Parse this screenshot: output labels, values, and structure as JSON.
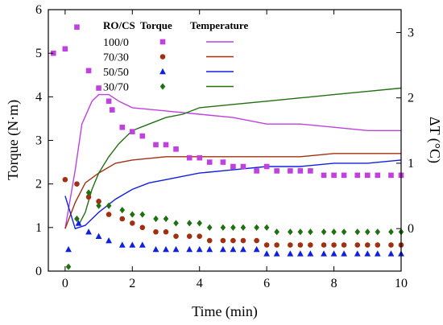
{
  "chart_data": {
    "type": "scatter",
    "xlabel": "Time (min)",
    "ylabel_left": "Torque (N·m)",
    "ylabel_right": "ΔT (°C)",
    "xlim": [
      -0.5,
      10
    ],
    "ylim_left": [
      0,
      6
    ],
    "ylim_right": [
      -0.65,
      3.35
    ],
    "x_ticks": [
      0,
      2,
      4,
      6,
      8,
      10
    ],
    "y_left_ticks": [
      0,
      1,
      2,
      3,
      4,
      5,
      6
    ],
    "y_right_ticks": [
      0,
      1,
      2,
      3
    ],
    "grid": false,
    "legend": {
      "placement": "top-center",
      "header_group": "RO/CS",
      "header_torque": "Torque",
      "header_temp": "Temperature"
    },
    "series": [
      {
        "name": "100/0",
        "color": "#c040e0",
        "marker": "square",
        "torque": [
          [
            -0.35,
            5.0
          ],
          [
            0.0,
            5.1
          ],
          [
            0.35,
            5.6
          ],
          [
            0.7,
            4.6
          ],
          [
            1.0,
            4.2
          ],
          [
            1.3,
            3.9
          ],
          [
            1.4,
            3.7
          ],
          [
            1.7,
            3.3
          ],
          [
            2.0,
            3.2
          ],
          [
            2.3,
            3.1
          ],
          [
            2.7,
            2.9
          ],
          [
            3.0,
            2.9
          ],
          [
            3.3,
            2.8
          ],
          [
            3.7,
            2.6
          ],
          [
            4.0,
            2.6
          ],
          [
            4.3,
            2.5
          ],
          [
            4.7,
            2.5
          ],
          [
            5.0,
            2.4
          ],
          [
            5.3,
            2.4
          ],
          [
            5.7,
            2.3
          ],
          [
            6.0,
            2.4
          ],
          [
            6.3,
            2.3
          ],
          [
            6.7,
            2.3
          ],
          [
            7.0,
            2.3
          ],
          [
            7.3,
            2.3
          ],
          [
            7.7,
            2.2
          ],
          [
            8.0,
            2.2
          ],
          [
            8.3,
            2.2
          ],
          [
            8.7,
            2.2
          ],
          [
            9.0,
            2.2
          ],
          [
            9.3,
            2.2
          ],
          [
            9.7,
            2.2
          ],
          [
            10.0,
            2.2
          ]
        ],
        "temperature": [
          [
            0.0,
            0.0
          ],
          [
            0.3,
            0.9
          ],
          [
            0.5,
            1.6
          ],
          [
            0.8,
            1.95
          ],
          [
            1.0,
            2.05
          ],
          [
            1.3,
            2.05
          ],
          [
            1.6,
            1.95
          ],
          [
            2.0,
            1.85
          ],
          [
            3.0,
            1.8
          ],
          [
            4.0,
            1.75
          ],
          [
            5.0,
            1.7
          ],
          [
            6.0,
            1.6
          ],
          [
            7.0,
            1.6
          ],
          [
            8.0,
            1.55
          ],
          [
            9.0,
            1.5
          ],
          [
            10.0,
            1.5
          ]
        ]
      },
      {
        "name": "70/30",
        "color": "#a03010",
        "marker": "circle",
        "torque": [
          [
            0.0,
            2.1
          ],
          [
            0.35,
            2.0
          ],
          [
            0.7,
            1.7
          ],
          [
            1.0,
            1.6
          ],
          [
            1.3,
            1.3
          ],
          [
            1.7,
            1.2
          ],
          [
            2.0,
            1.1
          ],
          [
            2.3,
            1.0
          ],
          [
            2.7,
            0.9
          ],
          [
            3.0,
            0.9
          ],
          [
            3.3,
            0.8
          ],
          [
            3.7,
            0.8
          ],
          [
            4.0,
            0.8
          ],
          [
            4.3,
            0.7
          ],
          [
            4.7,
            0.7
          ],
          [
            5.0,
            0.7
          ],
          [
            5.3,
            0.7
          ],
          [
            5.7,
            0.7
          ],
          [
            6.0,
            0.6
          ],
          [
            6.3,
            0.6
          ],
          [
            6.7,
            0.6
          ],
          [
            7.0,
            0.6
          ],
          [
            7.3,
            0.6
          ],
          [
            7.7,
            0.6
          ],
          [
            8.0,
            0.6
          ],
          [
            8.3,
            0.6
          ],
          [
            8.7,
            0.6
          ],
          [
            9.0,
            0.6
          ],
          [
            9.3,
            0.6
          ],
          [
            9.7,
            0.6
          ],
          [
            10.0,
            0.6
          ]
        ],
        "temperature": [
          [
            0.0,
            0.0
          ],
          [
            0.3,
            0.4
          ],
          [
            0.6,
            0.7
          ],
          [
            1.0,
            0.85
          ],
          [
            1.5,
            1.0
          ],
          [
            2.0,
            1.05
          ],
          [
            3.0,
            1.1
          ],
          [
            4.0,
            1.1
          ],
          [
            5.0,
            1.1
          ],
          [
            6.0,
            1.1
          ],
          [
            7.0,
            1.1
          ],
          [
            8.0,
            1.15
          ],
          [
            9.0,
            1.15
          ],
          [
            10.0,
            1.15
          ]
        ]
      },
      {
        "name": "50/50",
        "color": "#1020e0",
        "marker": "triangle",
        "torque": [
          [
            0.1,
            0.5
          ],
          [
            0.4,
            1.1
          ],
          [
            0.7,
            0.9
          ],
          [
            1.0,
            0.8
          ],
          [
            1.3,
            0.7
          ],
          [
            1.7,
            0.6
          ],
          [
            2.0,
            0.6
          ],
          [
            2.3,
            0.6
          ],
          [
            2.7,
            0.5
          ],
          [
            3.0,
            0.5
          ],
          [
            3.3,
            0.5
          ],
          [
            3.7,
            0.5
          ],
          [
            4.0,
            0.5
          ],
          [
            4.3,
            0.5
          ],
          [
            4.7,
            0.5
          ],
          [
            5.0,
            0.5
          ],
          [
            5.3,
            0.5
          ],
          [
            5.7,
            0.5
          ],
          [
            6.0,
            0.4
          ],
          [
            6.3,
            0.4
          ],
          [
            6.7,
            0.4
          ],
          [
            7.0,
            0.4
          ],
          [
            7.3,
            0.4
          ],
          [
            7.7,
            0.4
          ],
          [
            8.0,
            0.4
          ],
          [
            8.3,
            0.4
          ],
          [
            8.7,
            0.4
          ],
          [
            9.0,
            0.4
          ],
          [
            9.3,
            0.4
          ],
          [
            9.7,
            0.4
          ],
          [
            10.0,
            0.4
          ]
        ],
        "temperature": [
          [
            0.0,
            0.5
          ],
          [
            0.3,
            0.0
          ],
          [
            0.6,
            0.05
          ],
          [
            1.0,
            0.25
          ],
          [
            1.5,
            0.45
          ],
          [
            2.0,
            0.6
          ],
          [
            2.5,
            0.7
          ],
          [
            3.0,
            0.75
          ],
          [
            4.0,
            0.85
          ],
          [
            5.0,
            0.9
          ],
          [
            6.0,
            0.95
          ],
          [
            7.0,
            0.95
          ],
          [
            8.0,
            1.0
          ],
          [
            9.0,
            1.0
          ],
          [
            10.0,
            1.05
          ]
        ]
      },
      {
        "name": "30/70",
        "color": "#207010",
        "marker": "diamond",
        "torque": [
          [
            0.1,
            0.1
          ],
          [
            0.35,
            1.2
          ],
          [
            0.7,
            1.8
          ],
          [
            1.0,
            1.5
          ],
          [
            1.3,
            1.5
          ],
          [
            1.7,
            1.4
          ],
          [
            2.0,
            1.3
          ],
          [
            2.3,
            1.3
          ],
          [
            2.7,
            1.2
          ],
          [
            3.0,
            1.2
          ],
          [
            3.3,
            1.1
          ],
          [
            3.7,
            1.1
          ],
          [
            4.0,
            1.1
          ],
          [
            4.3,
            1.0
          ],
          [
            4.7,
            1.0
          ],
          [
            5.0,
            1.0
          ],
          [
            5.3,
            1.0
          ],
          [
            5.7,
            1.0
          ],
          [
            6.0,
            1.0
          ],
          [
            6.3,
            0.9
          ],
          [
            6.7,
            0.9
          ],
          [
            7.0,
            0.9
          ],
          [
            7.3,
            0.9
          ],
          [
            7.7,
            0.9
          ],
          [
            8.0,
            0.9
          ],
          [
            8.3,
            0.9
          ],
          [
            8.7,
            0.9
          ],
          [
            9.0,
            0.9
          ],
          [
            9.3,
            0.9
          ],
          [
            9.7,
            0.9
          ],
          [
            10.0,
            0.9
          ]
        ],
        "temperature": [
          [
            0.4,
            0.05
          ],
          [
            0.6,
            0.25
          ],
          [
            0.8,
            0.6
          ],
          [
            1.0,
            0.85
          ],
          [
            1.3,
            1.1
          ],
          [
            1.6,
            1.3
          ],
          [
            2.0,
            1.5
          ],
          [
            2.5,
            1.6
          ],
          [
            3.0,
            1.7
          ],
          [
            3.5,
            1.75
          ],
          [
            4.0,
            1.85
          ],
          [
            5.0,
            1.9
          ],
          [
            6.0,
            1.95
          ],
          [
            7.0,
            2.0
          ],
          [
            8.0,
            2.05
          ],
          [
            9.0,
            2.1
          ],
          [
            10.0,
            2.15
          ]
        ]
      }
    ]
  }
}
